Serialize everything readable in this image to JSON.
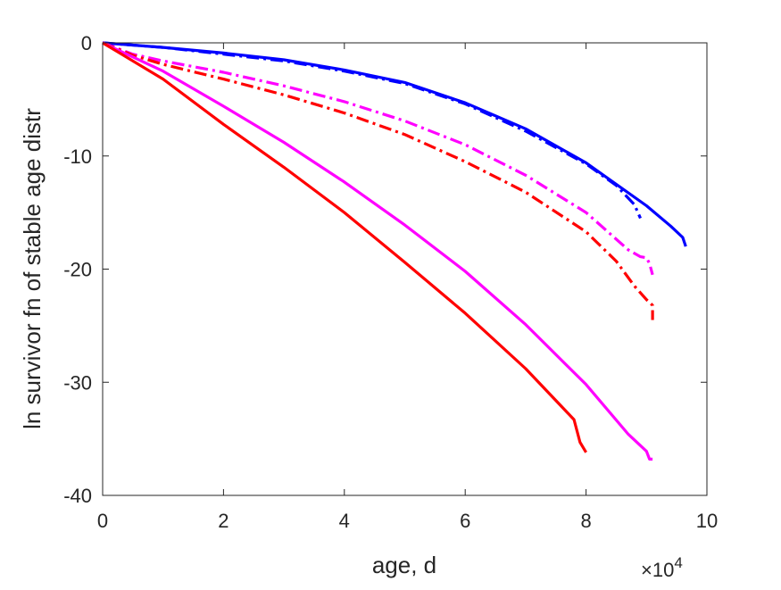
{
  "chart_data": {
    "type": "line",
    "title": "",
    "xlabel": "age, d",
    "ylabel": "ln survivor fn of stable age distr",
    "x_exponent_label": "×10",
    "x_exponent_power": "4",
    "xlim": [
      0,
      100000
    ],
    "ylim": [
      -40,
      0
    ],
    "x_ticks": [
      0,
      20000,
      40000,
      60000,
      80000,
      100000
    ],
    "x_tick_labels": [
      "0",
      "2",
      "4",
      "6",
      "8",
      "10"
    ],
    "y_ticks": [
      0,
      -10,
      -20,
      -30,
      -40
    ],
    "y_tick_labels": [
      "0",
      "-10",
      "-20",
      "-30",
      "-40"
    ],
    "grid": false,
    "legend": "none",
    "series": [
      {
        "color": "#0000ff",
        "style": "solid",
        "x": [
          0,
          10000,
          20000,
          30000,
          40000,
          50000,
          60000,
          70000,
          80000,
          90000,
          94000,
          96000,
          96500
        ],
        "y": [
          0,
          -0.4,
          -0.9,
          -1.5,
          -2.4,
          -3.5,
          -5.3,
          -7.6,
          -10.6,
          -14.4,
          -16.2,
          -17.2,
          -18
        ]
      },
      {
        "color": "#0000ff",
        "style": "dashdot",
        "x": [
          0,
          10000,
          20000,
          30000,
          40000,
          50000,
          60000,
          70000,
          80000,
          85000,
          88000,
          89000
        ],
        "y": [
          0,
          -0.4,
          -1.0,
          -1.6,
          -2.5,
          -3.6,
          -5.4,
          -7.8,
          -10.7,
          -12.6,
          -14.3,
          -15.5
        ]
      },
      {
        "color": "#ff00ff",
        "style": "dashdot",
        "x": [
          0,
          5000,
          10000,
          20000,
          30000,
          40000,
          50000,
          60000,
          70000,
          80000,
          87000,
          89000,
          90000,
          90500,
          91000
        ],
        "y": [
          0,
          -1.0,
          -1.6,
          -2.6,
          -3.8,
          -5.2,
          -6.9,
          -9.0,
          -11.7,
          -15.0,
          -18.3,
          -18.9,
          -19.0,
          -19.5,
          -20.5
        ]
      },
      {
        "color": "#ff0000",
        "style": "dashdot",
        "x": [
          0,
          5000,
          10000,
          20000,
          30000,
          40000,
          50000,
          60000,
          70000,
          80000,
          85000,
          88000,
          90000,
          91000,
          91000
        ],
        "y": [
          0,
          -1.1,
          -1.9,
          -3.2,
          -4.6,
          -6.2,
          -8.1,
          -10.5,
          -13.2,
          -16.7,
          -19.3,
          -21.5,
          -22.7,
          -23.2,
          -24.5
        ]
      },
      {
        "color": "#ff00ff",
        "style": "solid",
        "x": [
          0,
          10000,
          20000,
          30000,
          40000,
          50000,
          60000,
          70000,
          80000,
          87000,
          90000,
          90500,
          91000
        ],
        "y": [
          0,
          -2.5,
          -5.6,
          -8.8,
          -12.3,
          -16.1,
          -20.2,
          -24.9,
          -30.2,
          -34.6,
          -36.1,
          -36.8,
          -36.8
        ]
      },
      {
        "color": "#ff0000",
        "style": "solid",
        "x": [
          0,
          10000,
          20000,
          30000,
          40000,
          50000,
          60000,
          70000,
          78000,
          79000,
          80000
        ],
        "y": [
          0,
          -3.2,
          -7.2,
          -11.0,
          -15.0,
          -19.4,
          -23.9,
          -28.8,
          -33.3,
          -35.3,
          -36.2
        ]
      }
    ]
  }
}
